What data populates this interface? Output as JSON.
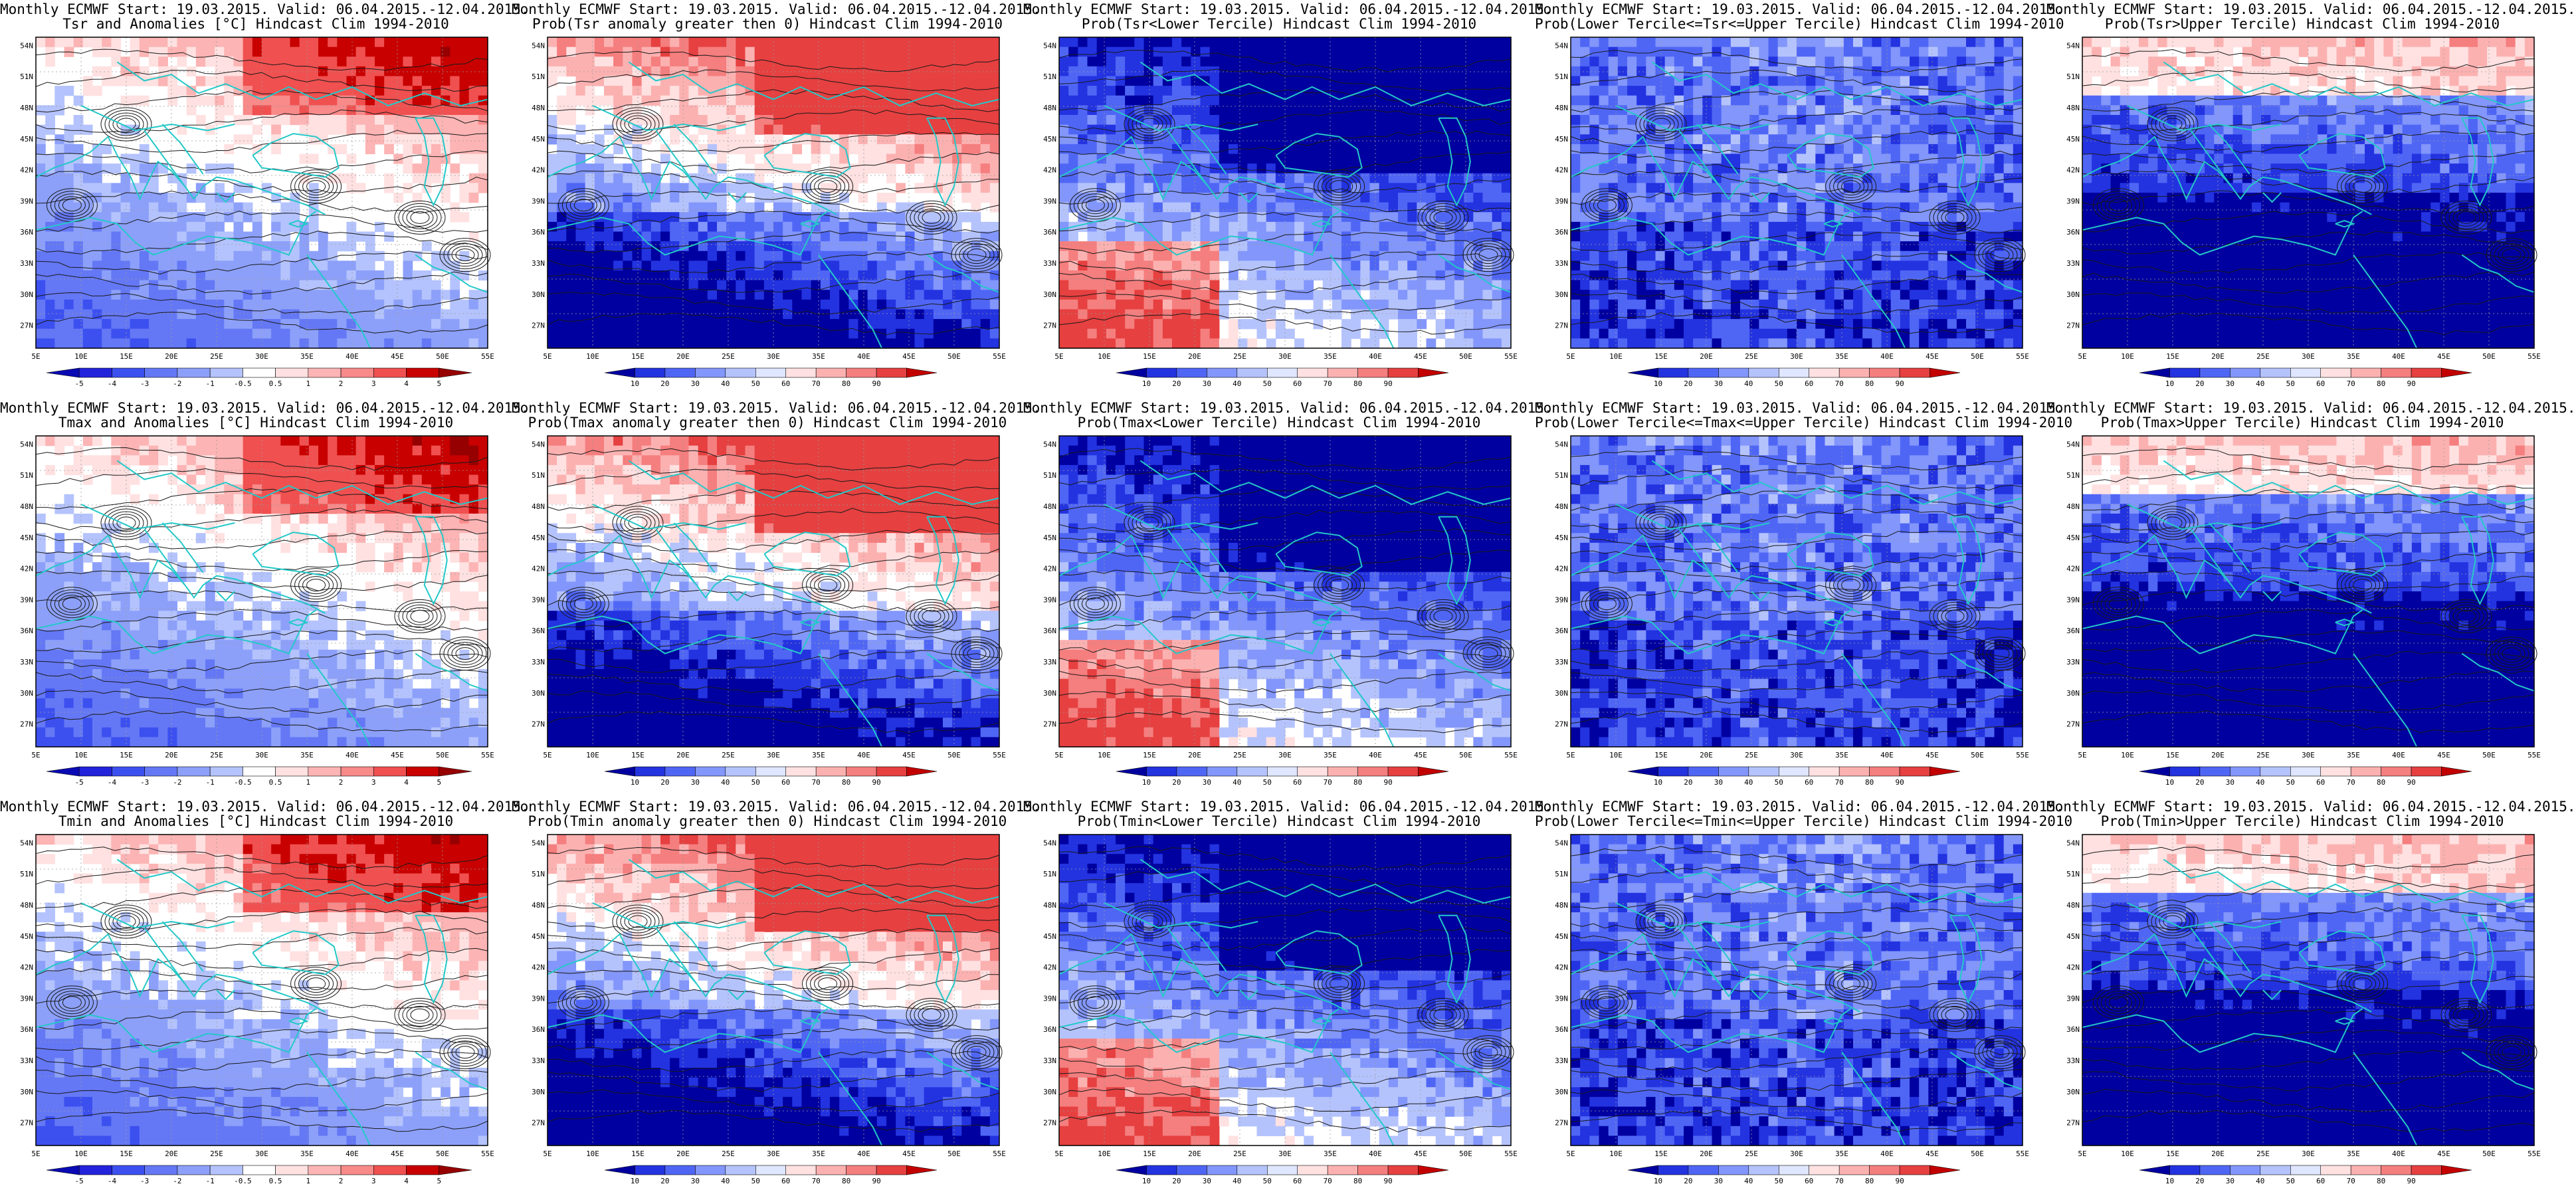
{
  "source": "Monthly ECMWF",
  "start": "Start: 19.03.2015.",
  "valid": "Valid: 06.04.2015.-12.04.2015.",
  "panels": [
    {
      "name": "tsr-anomalies",
      "title1": "Monthly ECMWF Start: 19.03.2015. Valid: 06.04.2015.-12.04.2015.",
      "title2": "Tsr and Anomalies [°C] Hindcast Clim 1994-2010",
      "scale": "anomaly",
      "pattern": "anom"
    },
    {
      "name": "tsr-prob-positive",
      "title1": "Monthly ECMWF Start: 19.03.2015. Valid: 06.04.2015.-12.04.2015.",
      "title2": "Prob(Tsr anomaly greater then 0) Hindcast Clim 1994-2010",
      "scale": "prob",
      "pattern": "probpos"
    },
    {
      "name": "tsr-prob-lower",
      "title1": "Monthly ECMWF Start: 19.03.2015. Valid: 06.04.2015.-12.04.2015.",
      "title2": "Prob(Tsr<Lower Tercile) Hindcast Clim 1994-2010",
      "scale": "prob",
      "pattern": "lower"
    },
    {
      "name": "tsr-prob-middle",
      "title1": "Monthly ECMWF Start: 19.03.2015. Valid: 06.04.2015.-12.04.2015.",
      "title2": "Prob(Lower Tercile<=Tsr<=Upper Tercile) Hindcast Clim 1994-2010",
      "scale": "prob",
      "pattern": "middle"
    },
    {
      "name": "tsr-prob-upper",
      "title1": "Monthly ECMWF Start: 19.03.2015. Valid: 06.04.2015.-12.04.2015.",
      "title2": "Prob(Tsr>Upper Tercile) Hindcast Clim 1994-2010",
      "scale": "prob",
      "pattern": "upper"
    },
    {
      "name": "tmax-anomalies",
      "title1": "Monthly ECMWF Start: 19.03.2015. Valid: 06.04.2015.-12.04.2015.",
      "title2": "Tmax and Anomalies [°C] Hindcast Clim 1994-2010",
      "scale": "anomaly",
      "pattern": "anom"
    },
    {
      "name": "tmax-prob-positive",
      "title1": "Monthly ECMWF Start: 19.03.2015. Valid: 06.04.2015.-12.04.2015.",
      "title2": "Prob(Tmax anomaly greater then 0) Hindcast Clim 1994-2010",
      "scale": "prob",
      "pattern": "probpos"
    },
    {
      "name": "tmax-prob-lower",
      "title1": "Monthly ECMWF Start: 19.03.2015. Valid: 06.04.2015.-12.04.2015.",
      "title2": "Prob(Tmax<Lower Tercile) Hindcast Clim 1994-2010",
      "scale": "prob",
      "pattern": "lower"
    },
    {
      "name": "tmax-prob-middle",
      "title1": "Monthly ECMWF Start: 19.03.2015. Valid: 06.04.2015.-12.04.2015.",
      "title2": "Prob(Lower Tercile<=Tmax<=Upper Tercile) Hindcast Clim 1994-2010",
      "scale": "prob",
      "pattern": "middle"
    },
    {
      "name": "tmax-prob-upper",
      "title1": "Monthly ECMWF Start: 19.03.2015. Valid: 06.04.2015.-12.04.2015.",
      "title2": "Prob(Tmax>Upper Tercile) Hindcast Clim 1994-2010",
      "scale": "prob",
      "pattern": "upper"
    },
    {
      "name": "tmin-anomalies",
      "title1": "Monthly ECMWF Start: 19.03.2015. Valid: 06.04.2015.-12.04.2015.",
      "title2": "Tmin and Anomalies [°C] Hindcast Clim 1994-2010",
      "scale": "anomaly",
      "pattern": "anom"
    },
    {
      "name": "tmin-prob-positive",
      "title1": "Monthly ECMWF Start: 19.03.2015. Valid: 06.04.2015.-12.04.2015.",
      "title2": "Prob(Tmin anomaly greater then 0) Hindcast Clim 1994-2010",
      "scale": "prob",
      "pattern": "probpos"
    },
    {
      "name": "tmin-prob-lower",
      "title1": "Monthly ECMWF Start: 19.03.2015. Valid: 06.04.2015.-12.04.2015.",
      "title2": "Prob(Tmin<Lower Tercile) Hindcast Clim 1994-2010",
      "scale": "prob",
      "pattern": "lower"
    },
    {
      "name": "tmin-prob-middle",
      "title1": "Monthly ECMWF Start: 19.03.2015. Valid: 06.04.2015.-12.04.2015.",
      "title2": "Prob(Lower Tercile<=Tmin<=Upper Tercile) Hindcast Clim 1994-2010",
      "scale": "prob",
      "pattern": "middle"
    },
    {
      "name": "tmin-prob-upper",
      "title1": "Monthly ECMWF Start: 19.03.2015. Valid: 06.04.2015.-12.04.2015.",
      "title2": "Prob(Tmin>Upper Tercile) Hindcast Clim 1994-2010",
      "scale": "prob",
      "pattern": "upper"
    }
  ],
  "axes": {
    "lon_labels": [
      "5E",
      "10E",
      "15E",
      "20E",
      "25E",
      "30E",
      "35E",
      "40E",
      "45E",
      "50E",
      "55E"
    ],
    "lat_labels": [
      "54N",
      "51N",
      "48N",
      "45N",
      "42N",
      "39N",
      "36N",
      "33N",
      "30N",
      "27N"
    ]
  },
  "scales": {
    "anomaly": {
      "labels": [
        "-5",
        "-4",
        "-3",
        "-2",
        "-1",
        "-0.5",
        "0.5",
        "1",
        "2",
        "3",
        "4",
        "5"
      ],
      "colors": [
        "#0a0ab4",
        "#2323dc",
        "#3c50f0",
        "#6478f5",
        "#8ca0fa",
        "#b4c3fd",
        "#dce4ff",
        "#ffffff",
        "#ffe1e1",
        "#fcb4b4",
        "#f88a8a",
        "#f05050",
        "#e11e1e",
        "#c80000",
        "#960000"
      ]
    },
    "prob": {
      "labels": [
        "10",
        "20",
        "30",
        "40",
        "50",
        "60",
        "70",
        "80",
        "90"
      ],
      "colors": [
        "#0000a0",
        "#2333e0",
        "#4f66f5",
        "#8296fb",
        "#b5c3fd",
        "#dfe6ff",
        "#ffe1e1",
        "#fcb1b1",
        "#f57e7e",
        "#e64040",
        "#c30000"
      ]
    }
  },
  "colors": {
    "coast": "#24c8c8",
    "contour": "#1a1a1a",
    "grid": "#9a9a9a"
  }
}
